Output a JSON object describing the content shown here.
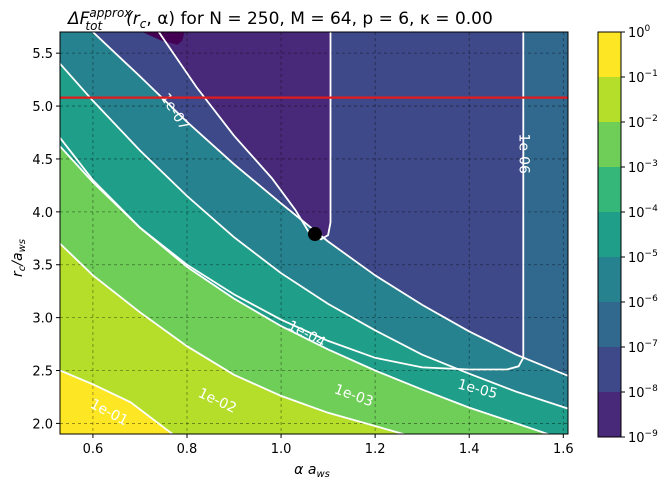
{
  "chart_data": {
    "type": "contour",
    "title": {
      "delta": "Δ",
      "F": "F",
      "sup": "approx",
      "sub": "tot",
      "args": "(r",
      "args_sub": "c",
      "args_rest": ", α)  for N = 250,    M = 64,    p = 6,    κ = 0.00"
    },
    "xlabel": {
      "main": "α a",
      "sub": "ws"
    },
    "ylabel": {
      "main": "r",
      "sub1": "c",
      "mid": "/a",
      "sub2": "ws"
    },
    "xlim": [
      0.53,
      1.61
    ],
    "ylim": [
      1.9,
      5.7
    ],
    "xticks": [
      {
        "v": 0.6,
        "label": "0.6"
      },
      {
        "v": 0.8,
        "label": "0.8"
      },
      {
        "v": 1.0,
        "label": "1.0"
      },
      {
        "v": 1.2,
        "label": "1.2"
      },
      {
        "v": 1.4,
        "label": "1.4"
      },
      {
        "v": 1.6,
        "label": "1.6"
      }
    ],
    "yticks": [
      {
        "v": 2.0,
        "label": "2.0"
      },
      {
        "v": 2.5,
        "label": "2.5"
      },
      {
        "v": 3.0,
        "label": "3.0"
      },
      {
        "v": 3.5,
        "label": "3.5"
      },
      {
        "v": 4.0,
        "label": "4.0"
      },
      {
        "v": 4.5,
        "label": "4.5"
      },
      {
        "v": 5.0,
        "label": "5.0"
      },
      {
        "v": 5.5,
        "label": "5.5"
      }
    ],
    "grid": true,
    "colorbar": {
      "scale": "log",
      "levels": [
        1e-09,
        1e-08,
        1e-07,
        1e-06,
        1e-05,
        0.0001,
        0.001,
        0.01,
        0.1,
        1
      ],
      "tick_labels": [
        {
          "base": "10",
          "exp": "0"
        },
        {
          "base": "10",
          "exp": "−1"
        },
        {
          "base": "10",
          "exp": "−2"
        },
        {
          "base": "10",
          "exp": "−3"
        },
        {
          "base": "10",
          "exp": "−4"
        },
        {
          "base": "10",
          "exp": "−5"
        },
        {
          "base": "10",
          "exp": "−6"
        },
        {
          "base": "10",
          "exp": "−7"
        },
        {
          "base": "10",
          "exp": "−8"
        },
        {
          "base": "10",
          "exp": "−9"
        }
      ],
      "band_colors": [
        "#440154",
        "#482878",
        "#3e4989",
        "#31688e",
        "#26828e",
        "#1f9e89",
        "#35b779",
        "#6ece58",
        "#b5de2b",
        "#fde725"
      ]
    },
    "contour_labels": [
      {
        "label": "1e-07",
        "x": 0.775,
        "y": 4.95,
        "angle": 58
      },
      {
        "label": "1e-06",
        "x": 1.517,
        "y": 4.55,
        "angle": 90
      },
      {
        "label": "1e-05",
        "x": 1.418,
        "y": 2.33,
        "angle": 15
      },
      {
        "label": "1e-04",
        "x": 1.055,
        "y": 2.85,
        "angle": 28
      },
      {
        "label": "1e-03",
        "x": 1.155,
        "y": 2.27,
        "angle": 20
      },
      {
        "label": "1e-02",
        "x": 0.865,
        "y": 2.22,
        "angle": 25
      },
      {
        "label": "1e-01",
        "x": 0.635,
        "y": 2.11,
        "angle": 28
      }
    ],
    "red_line_y": 5.08,
    "red_line_color": "#e31a1c",
    "optimum_point": {
      "x": 1.072,
      "y": 3.79
    }
  }
}
